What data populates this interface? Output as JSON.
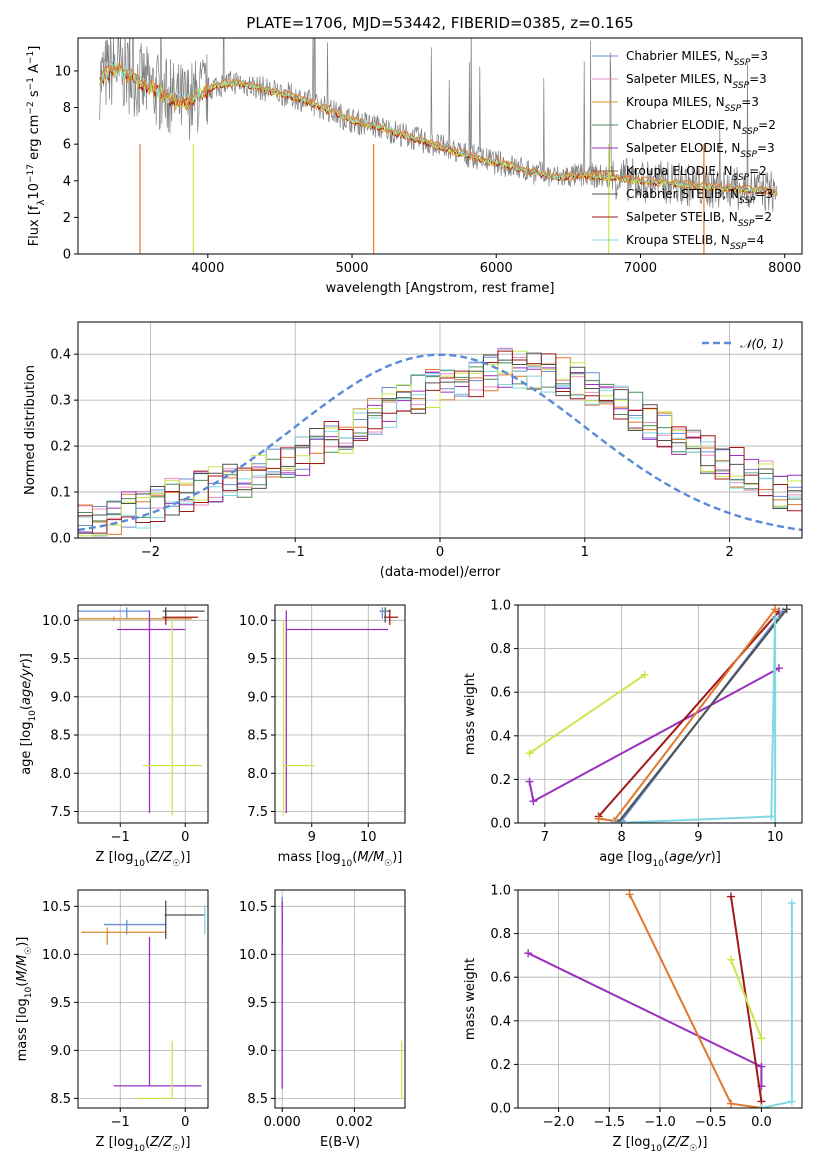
{
  "title": "PLATE=1706, MJD=53442, FIBERID=0385, z=0.165",
  "colors": {
    "Chabrier MILES": "#6a8fd4",
    "Salpeter MILES": "#e98fc4",
    "Kroupa MILES": "#d98c2a",
    "Chabrier ELODIE": "#4e8a5a",
    "Salpeter ELODIE": "#9b30c0",
    "Kroupa ELODIE": "#a05a2a",
    "Chabrier STELIB": "#505050",
    "Salpeter STELIB": "#a01818",
    "Kroupa STELIB": "#80d8e0",
    "data": "#7f7f7f",
    "lime": "#c8e84a",
    "orange": "#e07830",
    "gauss": "#5a8ad8"
  },
  "chart_data": [
    {
      "id": "spectrum",
      "type": "line",
      "xlabel": "wavelength [Angstrom, rest frame]",
      "ylabel": "Flux [f_λ10^-17 erg cm^-2 s^-1 A^-1]",
      "xlim": [
        3100,
        8120
      ],
      "ylim": [
        0,
        11.8
      ],
      "xticks": [
        4000,
        5000,
        6000,
        7000,
        8000
      ],
      "yticks": [
        0,
        2,
        4,
        6,
        8,
        10
      ],
      "grid": false,
      "legend_position": "right",
      "legend": [
        {
          "text": "Chabrier MILES, N",
          "sub": "SSP",
          "eq": "=3",
          "key": "Chabrier MILES"
        },
        {
          "text": "Salpeter MILES, N",
          "sub": "SSP",
          "eq": "=3",
          "key": "Salpeter MILES"
        },
        {
          "text": "Kroupa MILES, N",
          "sub": "SSP",
          "eq": "=3",
          "key": "Kroupa MILES"
        },
        {
          "text": "Chabrier ELODIE, N",
          "sub": "SSP",
          "eq": "=2",
          "key": "Chabrier ELODIE"
        },
        {
          "text": "Salpeter ELODIE, N",
          "sub": "SSP",
          "eq": "=3",
          "key": "Salpeter ELODIE"
        },
        {
          "text": "Kroupa ELODIE, N",
          "sub": "SSP",
          "eq": "=2",
          "key": "Kroupa ELODIE"
        },
        {
          "text": "Chabrier STELIB, N",
          "sub": "SSP",
          "eq": "=3",
          "key": "Chabrier STELIB"
        },
        {
          "text": "Salpeter STELIB, N",
          "sub": "SSP",
          "eq": "=2",
          "key": "Salpeter STELIB"
        },
        {
          "text": "Kroupa STELIB, N",
          "sub": "SSP",
          "eq": "=4",
          "key": "Kroupa STELIB"
        }
      ],
      "model_continuum": {
        "x": [
          3250,
          3350,
          3450,
          3550,
          3650,
          3750,
          3850,
          3950,
          4050,
          4200,
          4400,
          4600,
          4800,
          5000,
          5200,
          5400,
          5600,
          5800,
          6000,
          6200,
          6400,
          6600,
          6800,
          7000,
          7200,
          7400,
          7600,
          7800,
          7950
        ],
        "y": [
          9.5,
          10.2,
          9.8,
          9.3,
          8.9,
          8.4,
          8.3,
          8.7,
          9.2,
          9.4,
          9.0,
          8.6,
          8.0,
          7.3,
          6.9,
          6.4,
          5.9,
          5.4,
          5.0,
          4.6,
          4.2,
          4.3,
          4.2,
          4.0,
          3.9,
          3.7,
          3.6,
          3.5,
          3.4
        ]
      }
    },
    {
      "id": "residual-histogram",
      "type": "bar",
      "xlabel": "(data-model)/error",
      "ylabel": "Normed distribution",
      "xlim": [
        -2.5,
        2.5
      ],
      "ylim": [
        0,
        0.47
      ],
      "xticks": [
        -2,
        -1,
        0,
        1,
        2
      ],
      "yticks": [
        0.0,
        0.1,
        0.2,
        0.3,
        0.4
      ],
      "grid": true,
      "legend": "N(0,1)",
      "legend_position": "top-right",
      "bin_edges_start": -2.5,
      "bin_width": 0.1,
      "base_profile": [
        0.03,
        0.04,
        0.05,
        0.06,
        0.07,
        0.08,
        0.09,
        0.1,
        0.11,
        0.12,
        0.13,
        0.14,
        0.15,
        0.16,
        0.18,
        0.19,
        0.21,
        0.22,
        0.24,
        0.26,
        0.28,
        0.3,
        0.32,
        0.33,
        0.34,
        0.35,
        0.36,
        0.37,
        0.38,
        0.39,
        0.39,
        0.38,
        0.38,
        0.37,
        0.36,
        0.35,
        0.33,
        0.31,
        0.29,
        0.27,
        0.25,
        0.23,
        0.21,
        0.19,
        0.17,
        0.16,
        0.14,
        0.13,
        0.11,
        0.1,
        0.09,
        0.08,
        0.07,
        0.06,
        0.06,
        0.05,
        0.04,
        0.04,
        0.03,
        0.03,
        0.03,
        0.02,
        0.02,
        0.02,
        0.02,
        0.02,
        0.02,
        0.02,
        0.02,
        0.02,
        0.02,
        0.02,
        0.02,
        0.02,
        0.02,
        0.02,
        0.02,
        0.02,
        0.02,
        0.02
      ]
    },
    {
      "id": "age-vs-Z",
      "type": "scatter",
      "xlabel": "Z [log10(Z/Z☉)]",
      "ylabel": "age [log10(age/yr)]",
      "xlim": [
        -1.65,
        0.35
      ],
      "ylim": [
        7.35,
        10.2
      ],
      "xticks": [
        -1,
        0
      ],
      "yticks": [
        7.5,
        8.0,
        8.5,
        9.0,
        9.5,
        10.0
      ],
      "points": [
        {
          "key": "Chabrier MILES",
          "x": -0.9,
          "y": 10.12,
          "xerr": [
            0.75,
            0.35
          ],
          "yerr": [
            0.1,
            0.05
          ]
        },
        {
          "key": "Kroupa MILES",
          "x": -1.1,
          "y": 10.02,
          "xerr": [
            0.55,
            1.2
          ],
          "yerr": [
            0.03,
            0.03
          ]
        },
        {
          "key": "Salpeter ELODIE",
          "x": -0.55,
          "y": 9.88,
          "xerr": [
            0.5,
            0.55
          ],
          "yerr": [
            2.4,
            0.25
          ]
        },
        {
          "key": "lime",
          "x": -0.2,
          "y": 8.1,
          "xerr": [
            0.45,
            0.45
          ],
          "yerr": [
            0.65,
            1.9
          ]
        },
        {
          "key": "Salpeter STELIB",
          "x": -0.3,
          "y": 10.04,
          "xerr": [
            0.05,
            0.5
          ],
          "yerr": [
            0.1,
            0.1
          ]
        },
        {
          "key": "Chabrier STELIB",
          "x": -0.3,
          "y": 10.12,
          "xerr": [
            0.05,
            0.6
          ],
          "yerr": [
            0.1,
            0.05
          ]
        }
      ]
    },
    {
      "id": "age-vs-mass",
      "type": "scatter",
      "xlabel": "mass [log10(M/M☉)]",
      "ylabel": "",
      "xlim": [
        8.35,
        10.65
      ],
      "ylim": [
        7.35,
        10.2
      ],
      "xticks": [
        9,
        10
      ],
      "yticks": [
        7.5,
        8.0,
        8.5,
        9.0,
        9.5,
        10.0
      ],
      "points": [
        {
          "key": "Salpeter ELODIE",
          "x": 8.55,
          "y": 9.88,
          "xerr": [
            0.0,
            1.8
          ],
          "yerr": [
            2.4,
            0.25
          ]
        },
        {
          "key": "lime",
          "x": 8.5,
          "y": 8.1,
          "xerr": [
            0.0,
            0.55
          ],
          "yerr": [
            0.65,
            1.9
          ]
        },
        {
          "key": "Salpeter STELIB",
          "x": 10.38,
          "y": 10.04,
          "xerr": [
            0.1,
            0.15
          ],
          "yerr": [
            0.1,
            0.1
          ]
        },
        {
          "key": "Chabrier STELIB",
          "x": 10.3,
          "y": 10.12,
          "xerr": [
            0.1,
            0.1
          ],
          "yerr": [
            0.15,
            0.05
          ]
        },
        {
          "key": "Chabrier MILES",
          "x": 10.25,
          "y": 10.12,
          "xerr": [
            0.05,
            0.1
          ],
          "yerr": [
            0.1,
            0.05
          ]
        }
      ]
    },
    {
      "id": "mass-weight-vs-age",
      "type": "line",
      "xlabel": "age [log10(age/yr)]",
      "ylabel": "mass weight",
      "xlim": [
        6.65,
        10.35
      ],
      "ylim": [
        0,
        1.0
      ],
      "xticks": [
        7,
        8,
        9,
        10
      ],
      "yticks": [
        0.0,
        0.2,
        0.4,
        0.6,
        0.8,
        1.0
      ],
      "grid": true,
      "series": [
        {
          "key": "lime",
          "x": [
            6.8,
            8.3
          ],
          "y": [
            0.32,
            0.68
          ]
        },
        {
          "key": "Salpeter ELODIE",
          "x": [
            6.8,
            6.85,
            10.05
          ],
          "y": [
            0.19,
            0.1,
            0.71
          ]
        },
        {
          "key": "Salpeter STELIB",
          "x": [
            7.7,
            10.05
          ],
          "y": [
            0.03,
            0.97
          ]
        },
        {
          "key": "Chabrier MILES",
          "x": [
            7.9,
            8.0,
            10.1
          ],
          "y": [
            0.0,
            0.01,
            0.97
          ]
        },
        {
          "key": "Chabrier STELIB",
          "x": [
            7.95,
            10.15
          ],
          "y": [
            0.0,
            0.98
          ]
        },
        {
          "key": "orange",
          "x": [
            7.7,
            7.9,
            10.0
          ],
          "y": [
            0.02,
            0.01,
            0.98
          ]
        },
        {
          "key": "Kroupa STELIB",
          "x": [
            7.9,
            9.95,
            10.0,
            10.0
          ],
          "y": [
            0.0,
            0.03,
            0.94,
            0.0
          ]
        }
      ]
    },
    {
      "id": "mass-vs-Z",
      "type": "scatter",
      "xlabel": "Z [log10(Z/Z☉)]",
      "ylabel": "mass [log10(M/M☉)]",
      "xlim": [
        -1.65,
        0.35
      ],
      "ylim": [
        8.4,
        10.67
      ],
      "xticks": [
        -1,
        0
      ],
      "yticks": [
        8.5,
        9.0,
        9.5,
        10.0,
        10.5
      ],
      "points": [
        {
          "key": "Chabrier MILES",
          "x": -0.9,
          "y": 10.31,
          "xerr": [
            0.35,
            0.6
          ],
          "yerr": [
            0.1,
            0.05
          ]
        },
        {
          "key": "Kroupa MILES",
          "x": -1.2,
          "y": 10.23,
          "xerr": [
            0.4,
            0.9
          ],
          "yerr": [
            0.13,
            0.05
          ]
        },
        {
          "key": "Chabrier STELIB",
          "x": -0.3,
          "y": 10.41,
          "xerr": [
            0.02,
            0.6
          ],
          "yerr": [
            0.25,
            0.15
          ]
        },
        {
          "key": "Salpeter ELODIE",
          "x": -0.55,
          "y": 8.63,
          "xerr": [
            0.55,
            0.8
          ],
          "yerr": [
            0.0,
            1.55
          ]
        },
        {
          "key": "lime",
          "x": -0.2,
          "y": 8.5,
          "xerr": [
            0.55,
            0.0
          ],
          "yerr": [
            0.0,
            0.6
          ]
        },
        {
          "key": "Kroupa STELIB",
          "x": 0.3,
          "y": 10.41,
          "xerr": [
            0.02,
            0.02
          ],
          "yerr": [
            0.2,
            0.1
          ]
        }
      ]
    },
    {
      "id": "mass-vs-EBV",
      "type": "scatter",
      "xlabel": "E(B-V)",
      "ylabel": "",
      "xlim": [
        -0.0002,
        0.0034
      ],
      "ylim": [
        8.4,
        10.67
      ],
      "xticks": [
        0.0,
        0.002
      ],
      "xtick_labels": [
        "0.000",
        "0.002"
      ],
      "yticks": [
        8.5,
        9.0,
        9.5,
        10.0,
        10.5
      ],
      "points": [
        {
          "key": "Chabrier MILES",
          "x": 0.0,
          "y": 10.4,
          "xerr": [
            0,
            0
          ],
          "yerr": [
            0.3,
            0.2
          ]
        },
        {
          "key": "Salpeter ELODIE",
          "x": 0.0,
          "y": 9.6,
          "xerr": [
            0,
            0
          ],
          "yerr": [
            1.0,
            0.95
          ]
        },
        {
          "key": "lime",
          "x": 0.00331,
          "y": 8.8,
          "xerr": [
            0,
            0
          ],
          "yerr": [
            0.3,
            0.3
          ]
        }
      ]
    },
    {
      "id": "mass-weight-vs-Z",
      "type": "line",
      "xlabel": "Z [log10(Z/Z☉)]",
      "ylabel": "mass weight",
      "xlim": [
        -2.4,
        0.4
      ],
      "ylim": [
        0,
        1.0
      ],
      "xticks": [
        -2.0,
        -1.5,
        -1.0,
        -0.5,
        0.0
      ],
      "xtick_labels": [
        "−2.0",
        "−1.5",
        "−1.0",
        "−0.5",
        "0.0"
      ],
      "yticks": [
        0.0,
        0.2,
        0.4,
        0.6,
        0.8,
        1.0
      ],
      "grid": true,
      "series": [
        {
          "key": "Salpeter ELODIE",
          "x": [
            -2.3,
            0.0,
            0.0
          ],
          "y": [
            0.71,
            0.19,
            0.1
          ]
        },
        {
          "key": "orange",
          "x": [
            -1.3,
            -0.3,
            0.0
          ],
          "y": [
            0.98,
            0.02,
            0.0
          ]
        },
        {
          "key": "Salpeter STELIB",
          "x": [
            -0.3,
            0.0
          ],
          "y": [
            0.97,
            0.03
          ]
        },
        {
          "key": "lime",
          "x": [
            -0.3,
            0.0
          ],
          "y": [
            0.68,
            0.32
          ]
        },
        {
          "key": "Kroupa STELIB",
          "x": [
            0.3,
            0.3,
            0.0
          ],
          "y": [
            0.94,
            0.03,
            0.0
          ]
        }
      ]
    }
  ]
}
